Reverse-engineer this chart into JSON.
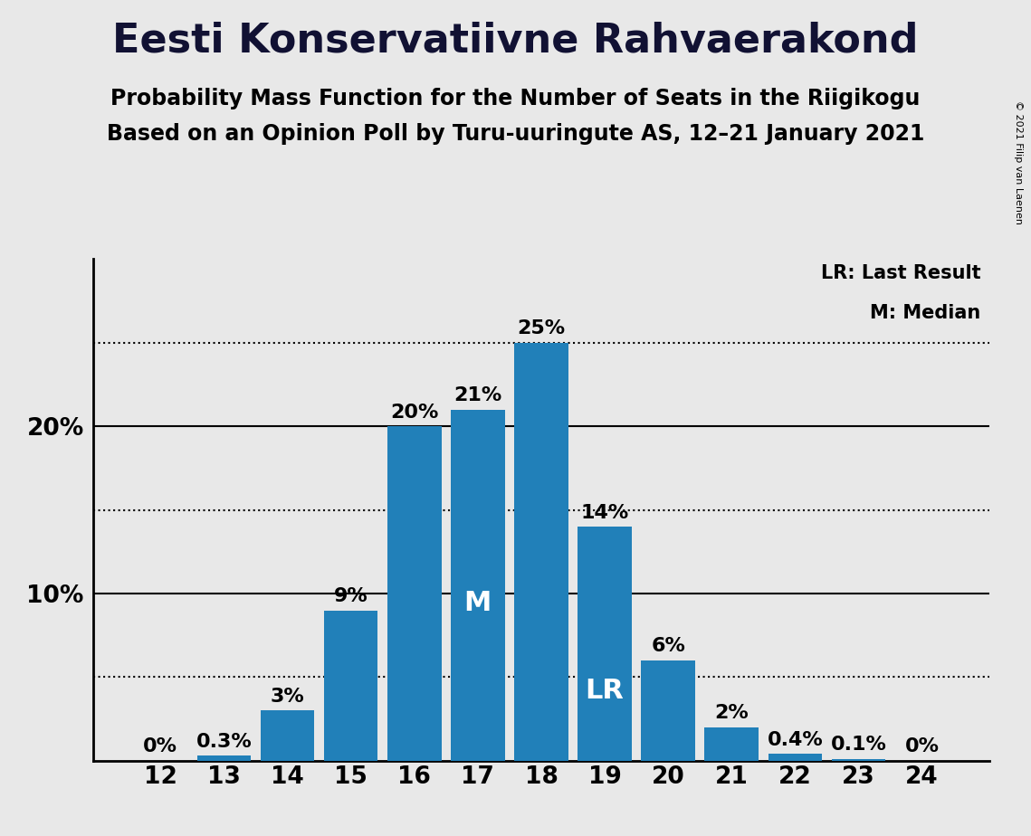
{
  "title": "Eesti Konservatiivne Rahvaerakond",
  "subtitle1": "Probability Mass Function for the Number of Seats in the Riigikogu",
  "subtitle2": "Based on an Opinion Poll by Turu-uuringute AS, 12–21 January 2021",
  "copyright": "© 2021 Filip van Laenen",
  "categories": [
    12,
    13,
    14,
    15,
    16,
    17,
    18,
    19,
    20,
    21,
    22,
    23,
    24
  ],
  "values": [
    0.0,
    0.3,
    3.0,
    9.0,
    20.0,
    21.0,
    25.0,
    14.0,
    6.0,
    2.0,
    0.4,
    0.1,
    0.0
  ],
  "bar_color": "#2180b9",
  "background_color": "#e8e8e8",
  "median_seat": 17,
  "last_result_seat": 19,
  "legend_lr": "LR: Last Result",
  "legend_m": "M: Median",
  "dotted_lines": [
    5,
    15,
    25
  ],
  "solid_lines": [
    10,
    20
  ],
  "title_fontsize": 32,
  "subtitle_fontsize": 17,
  "tick_fontsize": 19,
  "bar_label_fontsize": 16,
  "inside_label_fontsize": 22,
  "legend_fontsize": 15
}
